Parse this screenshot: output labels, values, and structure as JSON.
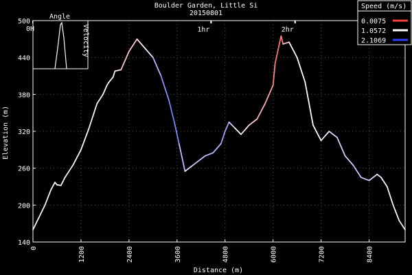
{
  "chart_data": {
    "type": "line",
    "title": "Boulder Garden, Little Si",
    "subtitle": "20150801",
    "xlabel": "Distance (m)",
    "ylabel": "Elevation (m)",
    "x_ticks": [
      "0",
      "1200",
      "2400",
      "3600",
      "4800",
      "6000",
      "7200",
      "8400"
    ],
    "y_ticks": [
      "140",
      "200",
      "260",
      "320",
      "380",
      "440",
      "500"
    ],
    "xlim": [
      0,
      9300
    ],
    "ylim": [
      140,
      500
    ],
    "time_markers": [
      {
        "label": "0hr",
        "distance": 0
      },
      {
        "label": "1hr",
        "distance": 4450
      },
      {
        "label": "2hr",
        "distance": 6550
      }
    ],
    "legend": {
      "title": "Speed (m/s)",
      "placement": "top-right",
      "entries": [
        {
          "label": "0.0075",
          "color": "#ff4040"
        },
        {
          "label": "1.0572",
          "color": "#ffffff"
        },
        {
          "label": "2.1069",
          "color": "#3040ff"
        }
      ]
    },
    "inset": {
      "title": "Angle",
      "left_label": "0H",
      "right_label": "Velocity",
      "placement": "top-left"
    },
    "series": [
      {
        "x": [
          0,
          150,
          300,
          450,
          550,
          600,
          700,
          800,
          1000,
          1200,
          1400,
          1600,
          1750,
          1850,
          1900,
          2000,
          2050,
          2200,
          2400,
          2600,
          2800,
          3000,
          3200,
          3400,
          3550,
          3650,
          3800,
          4000,
          4300,
          4500,
          4700,
          4800,
          4900,
          5050,
          5200,
          5400,
          5600,
          5800,
          6000,
          6050,
          6150,
          6200,
          6250,
          6400,
          6600,
          6800,
          7000,
          7200,
          7400,
          7600,
          7800,
          8000,
          8200,
          8400,
          8600,
          8700,
          8850,
          9000,
          9150,
          9300
        ],
        "y": [
          160,
          180,
          200,
          225,
          237,
          233,
          232,
          245,
          265,
          290,
          325,
          365,
          380,
          395,
          400,
          408,
          418,
          420,
          450,
          470,
          455,
          440,
          410,
          370,
          330,
          300,
          255,
          265,
          280,
          285,
          300,
          320,
          335,
          325,
          315,
          330,
          340,
          365,
          395,
          430,
          460,
          475,
          462,
          465,
          440,
          400,
          330,
          305,
          320,
          310,
          280,
          265,
          245,
          240,
          250,
          245,
          230,
          200,
          175,
          160
        ],
        "speed": [
          1.1,
          1.0,
          1.0,
          1.1,
          1.0,
          1.0,
          1.2,
          1.1,
          1.1,
          1.1,
          1.0,
          1.0,
          1.0,
          1.0,
          1.0,
          1.0,
          1.0,
          0.9,
          0.6,
          0.9,
          1.0,
          1.3,
          1.6,
          1.7,
          1.8,
          1.6,
          1.2,
          1.3,
          1.4,
          1.4,
          1.5,
          1.6,
          1.5,
          1.1,
          1.0,
          0.9,
          0.7,
          0.6,
          0.5,
          0.3,
          0.3,
          0.3,
          0.5,
          1.0,
          1.0,
          1.1,
          1.0,
          1.1,
          1.2,
          1.3,
          1.3,
          1.3,
          1.4,
          1.3,
          1.2,
          1.1,
          1.0,
          1.0,
          1.0,
          1.0
        ]
      }
    ]
  }
}
